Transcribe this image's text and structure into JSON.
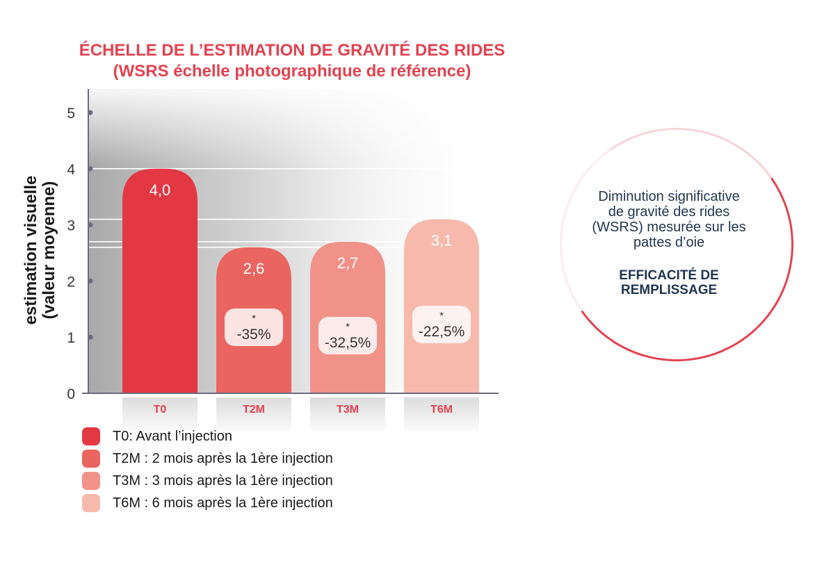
{
  "chart_data": {
    "type": "bar",
    "title": "ÉCHELLE DE L’ESTIMATION DE GRAVITÉ DES RIDES",
    "subtitle": "(WSRS échelle photographique de référence)",
    "ylabel": [
      "estimation visuelle",
      "(valeur moyenne)"
    ],
    "xlabel": "",
    "categories": [
      "T0",
      "T2M",
      "T3M",
      "T6M"
    ],
    "values": [
      4.0,
      2.6,
      2.7,
      3.1
    ],
    "value_labels": [
      "4,0",
      "2,6",
      "2,7",
      "3,1"
    ],
    "change_labels": [
      "",
      "-35%",
      "-32,5%",
      "-22,5%"
    ],
    "significance_marker": "*",
    "yticks": [
      "0",
      "1",
      "2",
      "3",
      "4",
      "5"
    ],
    "ylim": [
      0,
      5
    ],
    "colors": [
      "#e33744",
      "#ea6560",
      "#f19288",
      "#f6b9ac"
    ],
    "legend": [
      "T0: Avant l’injection",
      "T2M : 2 mois après la 1ère injection",
      "T3M : 3 mois après la 1ère injection",
      "T6M : 6 mois après la 1ère injection"
    ],
    "legend_position": "bottom-left",
    "grid": false
  },
  "callout": {
    "description": [
      "Diminution significative",
      "de gravité des rides",
      "(WSRS) mesurée sur les",
      "pattes d’oie"
    ],
    "emphasis": [
      "EFFICACITÉ DE",
      "REMPLISSAGE"
    ]
  },
  "colors": {
    "title": "#e3424f",
    "callout_text": "#1f3550",
    "axis": "#6b6b80"
  }
}
